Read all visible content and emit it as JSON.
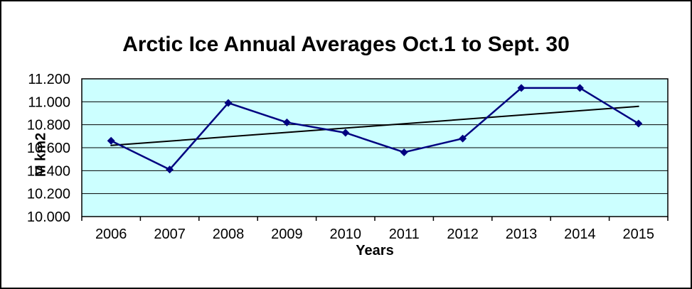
{
  "chart": {
    "title": "Arctic Ice Annual Averages Oct.1 to Sept. 30",
    "x_axis": {
      "title": "Years"
    },
    "y_axis": {
      "title": "M km2"
    }
  },
  "chart_data": {
    "type": "line",
    "title": "Arctic Ice Annual Averages Oct.1 to Sept. 30",
    "xlabel": "Years",
    "ylabel": "M km2",
    "categories": [
      "2006",
      "2007",
      "2008",
      "2009",
      "2010",
      "2011",
      "2012",
      "2013",
      "2014",
      "2015"
    ],
    "series": [
      {
        "values": [
          10.66,
          10.41,
          10.99,
          10.82,
          10.73,
          10.56,
          10.68,
          11.12,
          11.12,
          10.81
        ],
        "color": "#000080",
        "marker": "diamond",
        "line_width": 2.5
      }
    ],
    "trendline": {
      "type": "linear",
      "start_value": 10.62,
      "end_value": 10.96,
      "color": "#000000",
      "line_width": 2
    },
    "ylim": [
      10.0,
      11.2
    ],
    "y_tick_step": 0.2,
    "y_tick_labels": [
      "11.200",
      "11.000",
      "10.800",
      "10.600",
      "10.400",
      "10.200",
      "10.000"
    ],
    "grid": true,
    "legend": false,
    "plot_bg_color": "#CCFFFF",
    "gridline_color": "#000000",
    "axis_color": "#000000"
  }
}
